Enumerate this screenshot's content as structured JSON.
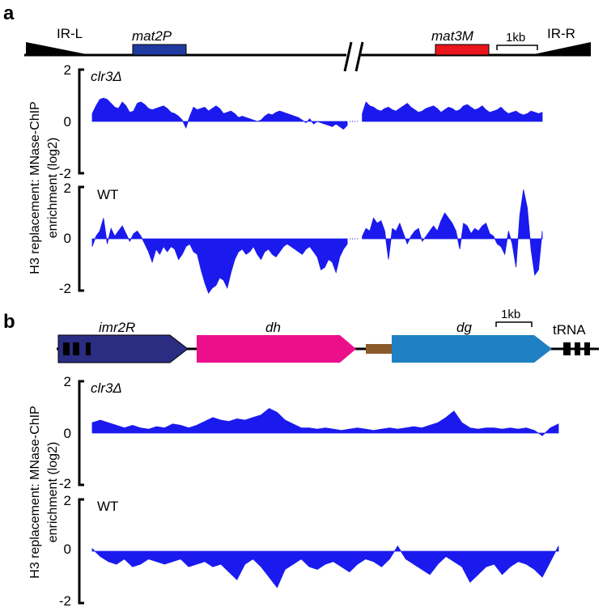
{
  "colors": {
    "signal": "#1a1aee",
    "mat2P": "#1f3aa0",
    "mat3M": "#e8161c",
    "imr2R": "#2a2d82",
    "dh": "#ec0f8c",
    "linker": "#8b5a2b",
    "dg": "#1f80c4",
    "ink": "#000000"
  },
  "chart_data": [
    {
      "panel": "a",
      "type": "area",
      "map": {
        "labels": [
          "IR-L",
          "mat2P",
          "mat3M",
          "1kb",
          "IR-R"
        ],
        "ir_left": "IR-L",
        "gene_left": "mat2P",
        "gene_right": "mat3M",
        "scale_bar": "1kb",
        "ir_right": "IR-R"
      },
      "ylabel_line1": "H3 replacement: MNase-ChIP",
      "ylabel_line2": "enrichment (log2)",
      "tracks": [
        {
          "name": "clr3Δ",
          "ylim": [
            -2,
            2
          ],
          "yticks": [
            2,
            0,
            -2
          ],
          "segments": [
            {
              "x": [
                0,
                0.1,
                0.2,
                0.3,
                0.4,
                0.5,
                0.6,
                0.7,
                0.8,
                0.9,
                1.0,
                1.1,
                1.2,
                1.3,
                1.4,
                1.5,
                1.6,
                1.7,
                1.8,
                1.9,
                2.0,
                2.1,
                2.2,
                2.3,
                2.4,
                2.5,
                2.6,
                2.7,
                2.8,
                2.9,
                3.0,
                3.1,
                3.2,
                3.3,
                3.4,
                3.5,
                3.6,
                3.7,
                3.8,
                3.9,
                4.0,
                4.1,
                4.2,
                4.3,
                4.4,
                4.5,
                4.6,
                4.7,
                4.8,
                4.9,
                5.0,
                5.1,
                5.2,
                5.3,
                5.4,
                5.5,
                5.6,
                5.7,
                5.8,
                5.9,
                6.0,
                6.1,
                6.2,
                6.3,
                6.4,
                6.5,
                6.6,
                6.7,
                6.8
              ],
              "y": [
                0.3,
                0.6,
                0.85,
                0.9,
                0.85,
                0.7,
                0.55,
                0.5,
                0.75,
                0.6,
                0.35,
                0.4,
                0.7,
                0.75,
                0.65,
                0.5,
                0.45,
                0.5,
                0.55,
                0.6,
                0.5,
                0.35,
                0.3,
                0.2,
                0.05,
                -0.25,
                0.2,
                0.55,
                0.45,
                0.5,
                0.55,
                0.4,
                0.5,
                0.6,
                0.5,
                0.3,
                0.35,
                0.4,
                0.3,
                0.15,
                0.2,
                0.15,
                0.1,
                0.05,
                0.0,
                0.05,
                0.2,
                0.3,
                0.25,
                0.35,
                0.4,
                0.35,
                0.3,
                0.25,
                0.2,
                0.15,
                0.05,
                -0.05,
                0.1,
                -0.1,
                0.0,
                -0.05,
                -0.1,
                -0.15,
                -0.2,
                -0.1,
                -0.2,
                -0.3,
                -0.15
              ]
            },
            {
              "x": [
                7.2,
                7.3,
                7.4,
                7.5,
                7.6,
                7.7,
                7.8,
                7.9,
                8.0,
                8.1,
                8.2,
                8.3,
                8.4,
                8.5,
                8.6,
                8.7,
                8.8,
                8.9,
                9.0,
                9.1,
                9.2,
                9.3,
                9.4,
                9.5,
                9.6,
                9.7,
                9.8,
                9.9,
                10.0,
                10.1,
                10.2,
                10.3,
                10.4,
                10.5,
                10.6,
                10.7,
                10.8,
                10.9,
                11.0,
                11.1,
                11.2,
                11.3,
                11.4,
                11.5,
                11.6,
                11.7,
                11.8,
                11.9,
                12.0
              ],
              "y": [
                0.3,
                0.75,
                0.6,
                0.55,
                0.45,
                0.4,
                0.5,
                0.55,
                0.45,
                0.4,
                0.5,
                0.6,
                0.7,
                0.55,
                0.45,
                0.35,
                0.4,
                0.5,
                0.55,
                0.6,
                0.5,
                0.35,
                0.45,
                0.55,
                0.5,
                0.4,
                0.45,
                0.6,
                0.65,
                0.55,
                0.45,
                0.5,
                0.6,
                0.45,
                0.35,
                0.4,
                0.45,
                0.55,
                0.4,
                0.3,
                0.35,
                0.4,
                0.3,
                0.25,
                0.3,
                0.4,
                0.35,
                0.3,
                0.35
              ]
            }
          ]
        },
        {
          "name": "WT",
          "ylim": [
            -2,
            2
          ],
          "yticks": [
            2,
            0,
            -2
          ],
          "segments": [
            {
              "x": [
                0,
                0.1,
                0.2,
                0.3,
                0.4,
                0.5,
                0.6,
                0.7,
                0.8,
                0.9,
                1.0,
                1.1,
                1.2,
                1.3,
                1.4,
                1.5,
                1.6,
                1.7,
                1.8,
                1.9,
                2.0,
                2.1,
                2.2,
                2.3,
                2.4,
                2.5,
                2.6,
                2.7,
                2.8,
                2.9,
                3.0,
                3.1,
                3.2,
                3.3,
                3.4,
                3.5,
                3.6,
                3.7,
                3.8,
                3.9,
                4.0,
                4.1,
                4.2,
                4.3,
                4.4,
                4.5,
                4.6,
                4.7,
                4.8,
                4.9,
                5.0,
                5.1,
                5.2,
                5.3,
                5.4,
                5.5,
                5.6,
                5.7,
                5.8,
                5.9,
                6.0,
                6.1,
                6.2,
                6.3,
                6.4,
                6.5,
                6.6,
                6.7,
                6.8
              ],
              "y": [
                -0.3,
                0.1,
                0.3,
                0.8,
                -0.2,
                0.4,
                0.1,
                0.3,
                0.5,
                0.2,
                -0.1,
                0.2,
                0.3,
                0.1,
                -0.2,
                -0.5,
                -0.9,
                -0.4,
                -0.6,
                -0.3,
                -0.5,
                -0.3,
                -0.4,
                -0.8,
                -0.6,
                -0.3,
                -0.2,
                -0.5,
                -0.6,
                -1.2,
                -1.7,
                -2.1,
                -1.9,
                -1.8,
                -1.5,
                -1.6,
                -1.9,
                -1.3,
                -0.8,
                -0.5,
                -0.4,
                -0.6,
                -0.5,
                -0.3,
                -0.6,
                -0.8,
                -0.5,
                -0.4,
                -0.6,
                -0.7,
                -0.5,
                -0.3,
                -0.2,
                -0.3,
                -0.4,
                -0.5,
                -0.6,
                -0.4,
                -0.3,
                -0.5,
                -0.7,
                -1.2,
                -1.1,
                -0.8,
                -0.9,
                -1.3,
                -0.7,
                -0.4,
                -0.2
              ]
            },
            {
              "x": [
                7.2,
                7.3,
                7.4,
                7.5,
                7.6,
                7.7,
                7.8,
                7.9,
                8.0,
                8.1,
                8.2,
                8.3,
                8.4,
                8.5,
                8.6,
                8.7,
                8.8,
                8.9,
                9.0,
                9.1,
                9.2,
                9.3,
                9.4,
                9.5,
                9.6,
                9.7,
                9.8,
                9.9,
                10.0,
                10.1,
                10.2,
                10.3,
                10.4,
                10.5,
                10.6,
                10.7,
                10.8,
                10.9,
                11.0,
                11.1,
                11.2,
                11.3,
                11.4,
                11.5,
                11.6,
                11.7,
                11.8,
                11.9,
                12.0
              ],
              "y": [
                0.1,
                0.4,
                0.3,
                0.8,
                0.6,
                0.7,
                0.3,
                -0.8,
                0.4,
                0.3,
                0.6,
                0.2,
                -0.2,
                0.1,
                0.3,
                0.4,
                -0.1,
                0.1,
                0.3,
                0.5,
                0.3,
                0.7,
                1.0,
                0.8,
                0.6,
                0.3,
                -0.4,
                0.6,
                0.5,
                0.2,
                0.4,
                0.3,
                0.5,
                0.6,
                0.2,
                0.1,
                -0.2,
                -0.3,
                -0.6,
                0.3,
                -0.2,
                -1.1,
                0.9,
                1.9,
                1.2,
                -0.4,
                -1.4,
                -1.2,
                0.3
              ]
            }
          ]
        }
      ]
    },
    {
      "panel": "b",
      "type": "area",
      "map": {
        "labels": [
          "imr2R",
          "dh",
          "dg",
          "1kb",
          "tRNA"
        ],
        "element_left": "imr2R",
        "element_mid": "dh",
        "element_right": "dg",
        "scale_bar": "1kb",
        "trna": "tRNA"
      },
      "ylabel_line1": "H3 replacement: MNase-ChIP",
      "ylabel_line2": "enrichment (log2)",
      "tracks": [
        {
          "name": "clr3Δ",
          "ylim": [
            -2,
            2
          ],
          "yticks": [
            2,
            0,
            -2
          ],
          "segments": [
            {
              "x": [
                0,
                0.2,
                0.4,
                0.6,
                0.8,
                1.0,
                1.2,
                1.4,
                1.6,
                1.8,
                2.0,
                2.2,
                2.4,
                2.6,
                2.8,
                3.0,
                3.2,
                3.4,
                3.6,
                3.8,
                4.0,
                4.2,
                4.4,
                4.6,
                4.8,
                5.0,
                5.2,
                5.4,
                5.6,
                5.8,
                6.0,
                6.2,
                6.4,
                6.6,
                6.8,
                7.0,
                7.2,
                7.4,
                7.6,
                7.8,
                8.0,
                8.2,
                8.4,
                8.6,
                8.8,
                9.0,
                9.2,
                9.4,
                9.6,
                9.8,
                10.0,
                10.2,
                10.4,
                10.6,
                10.8,
                11.0,
                11.2,
                11.4,
                11.6
              ],
              "y": [
                0.4,
                0.5,
                0.4,
                0.3,
                0.2,
                0.3,
                0.2,
                0.15,
                0.25,
                0.2,
                0.35,
                0.3,
                0.2,
                0.3,
                0.45,
                0.6,
                0.5,
                0.45,
                0.55,
                0.5,
                0.6,
                0.7,
                0.95,
                0.8,
                0.5,
                0.35,
                0.2,
                0.2,
                0.15,
                0.2,
                0.15,
                0.1,
                0.15,
                0.2,
                0.15,
                0.1,
                0.15,
                0.2,
                0.15,
                0.2,
                0.25,
                0.2,
                0.3,
                0.4,
                0.6,
                0.85,
                0.4,
                0.2,
                0.15,
                0.2,
                0.2,
                0.15,
                0.2,
                0.15,
                0.2,
                0.1,
                -0.1,
                0.2,
                0.35
              ]
            }
          ]
        },
        {
          "name": "WT",
          "ylim": [
            -2,
            2
          ],
          "yticks": [
            2,
            0,
            -2
          ],
          "segments": [
            {
              "x": [
                0,
                0.2,
                0.4,
                0.6,
                0.8,
                1.0,
                1.2,
                1.4,
                1.6,
                1.8,
                2.0,
                2.2,
                2.4,
                2.6,
                2.8,
                3.0,
                3.2,
                3.4,
                3.6,
                3.8,
                4.0,
                4.2,
                4.4,
                4.6,
                4.8,
                5.0,
                5.2,
                5.4,
                5.6,
                5.8,
                6.0,
                6.2,
                6.4,
                6.6,
                6.8,
                7.0,
                7.2,
                7.4,
                7.6,
                7.8,
                8.0,
                8.2,
                8.4,
                8.6,
                8.8,
                9.0,
                9.2,
                9.4,
                9.6,
                9.8,
                10.0,
                10.2,
                10.4,
                10.6,
                10.8,
                11.0,
                11.2,
                11.4,
                11.6
              ],
              "y": [
                0.1,
                -0.2,
                -0.4,
                -0.5,
                -0.3,
                -0.6,
                -0.5,
                -0.3,
                -0.4,
                -0.5,
                -0.4,
                -0.3,
                -0.6,
                -0.5,
                -0.4,
                -0.6,
                -0.5,
                -0.8,
                -1.1,
                -0.5,
                -0.3,
                -0.6,
                -1.0,
                -1.4,
                -0.7,
                -0.5,
                -0.3,
                -0.6,
                -0.7,
                -0.5,
                -0.4,
                -0.6,
                -0.8,
                -0.5,
                -0.3,
                -0.4,
                -0.6,
                -0.3,
                0.2,
                -0.3,
                -0.5,
                -0.7,
                -0.9,
                -0.5,
                -0.2,
                -0.4,
                -0.6,
                -1.2,
                -0.9,
                -0.6,
                -0.5,
                -0.9,
                -0.6,
                -0.4,
                -0.5,
                -0.7,
                -1.0,
                -0.4,
                0.2
              ]
            }
          ]
        }
      ]
    }
  ]
}
